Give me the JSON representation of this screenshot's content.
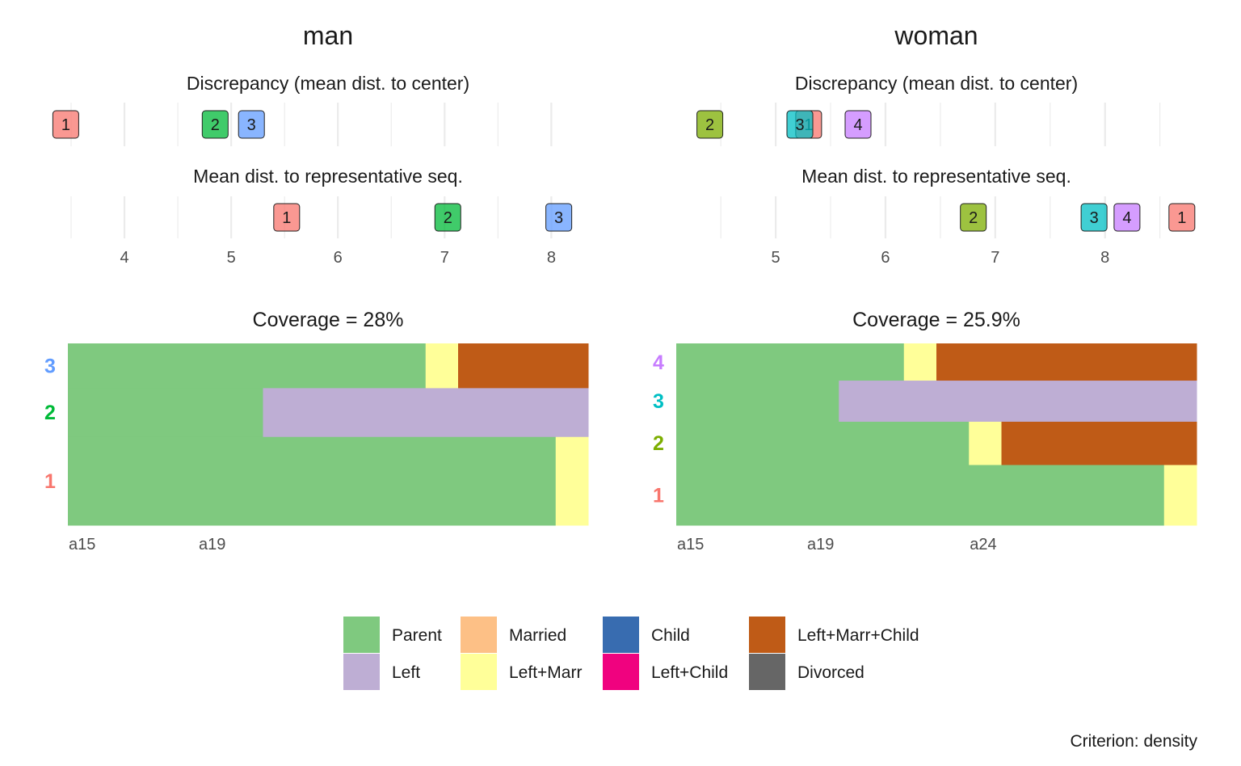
{
  "legend": {
    "items": [
      {
        "label": "Parent",
        "color": "#7FC97F"
      },
      {
        "label": "Left",
        "color": "#BEAED4"
      },
      {
        "label": "Married",
        "color": "#FDC086"
      },
      {
        "label": "Left+Marr",
        "color": "#FFFF99"
      },
      {
        "label": "Child",
        "color": "#386CB0"
      },
      {
        "label": "Left+Child",
        "color": "#F0027F"
      },
      {
        "label": "Left+Marr+Child",
        "color": "#BF5B17"
      },
      {
        "label": "Divorced",
        "color": "#666666"
      }
    ]
  },
  "caption": "Criterion: density",
  "chart_data": [
    {
      "type": "representative-sequence-plot",
      "title": "man",
      "discrepancy": {
        "label": "Discrepancy (mean dist. to center)",
        "values": [
          {
            "id": "1",
            "value": 3.45
          },
          {
            "id": "2",
            "value": 4.85
          },
          {
            "id": "3",
            "value": 5.19
          }
        ]
      },
      "mean_dist": {
        "label": "Mean dist. to representative seq.",
        "values": [
          {
            "id": "1",
            "value": 5.52
          },
          {
            "id": "2",
            "value": 7.03
          },
          {
            "id": "3",
            "value": 8.07
          }
        ]
      },
      "x_ticks": [
        "4",
        "5",
        "6",
        "7",
        "8"
      ],
      "xlim": [
        3.5,
        8.3
      ],
      "coverage_label": "Coverage = 28%",
      "seq_ticks": [
        "a15",
        "a19"
      ],
      "n_positions": 16,
      "sequences": [
        {
          "id": "1",
          "weight": 2.0,
          "label_color": "#F8766D",
          "runs": [
            {
              "state": "Parent",
              "length": 15
            },
            {
              "state": "Left+Marr",
              "length": 1
            }
          ]
        },
        {
          "id": "2",
          "weight": 1.1,
          "label_color": "#00BA38",
          "runs": [
            {
              "state": "Parent",
              "length": 6
            },
            {
              "state": "Left",
              "length": 10
            }
          ]
        },
        {
          "id": "3",
          "weight": 1.0,
          "label_color": "#619CFF",
          "runs": [
            {
              "state": "Parent",
              "length": 11
            },
            {
              "state": "Left+Marr",
              "length": 1
            },
            {
              "state": "Left+Marr+Child",
              "length": 4
            }
          ]
        }
      ]
    },
    {
      "type": "representative-sequence-plot",
      "title": "woman",
      "discrepancy": {
        "label": "Discrepancy (mean dist. to center)",
        "values": [
          {
            "id": "2",
            "value": 4.4
          },
          {
            "id": "1",
            "value": 5.3
          },
          {
            "id": "3",
            "value": 5.22
          },
          {
            "id": "4",
            "value": 5.75
          }
        ]
      },
      "mean_dist": {
        "label": "Mean dist. to representative seq.",
        "values": [
          {
            "id": "2",
            "value": 6.8
          },
          {
            "id": "3",
            "value": 7.9
          },
          {
            "id": "4",
            "value": 8.2
          },
          {
            "id": "1",
            "value": 8.7
          }
        ]
      },
      "x_ticks": [
        "5",
        "6",
        "7",
        "8"
      ],
      "xlim": [
        4.3,
        8.9
      ],
      "coverage_label": "Coverage = 25.9%",
      "seq_ticks": [
        "a15",
        "a19",
        "a24"
      ],
      "n_positions": 16,
      "sequences": [
        {
          "id": "1",
          "weight": 1.4,
          "label_color": "#F8766D",
          "runs": [
            {
              "state": "Parent",
              "length": 15
            },
            {
              "state": "Left+Marr",
              "length": 1
            }
          ]
        },
        {
          "id": "2",
          "weight": 1.0,
          "label_color": "#7CAE00",
          "runs": [
            {
              "state": "Parent",
              "length": 9
            },
            {
              "state": "Left+Marr",
              "length": 1
            },
            {
              "state": "Left+Marr+Child",
              "length": 6
            }
          ]
        },
        {
          "id": "3",
          "weight": 0.95,
          "label_color": "#00BFC4",
          "runs": [
            {
              "state": "Parent",
              "length": 5
            },
            {
              "state": "Left",
              "length": 11
            }
          ]
        },
        {
          "id": "4",
          "weight": 0.85,
          "label_color": "#C77CFF",
          "runs": [
            {
              "state": "Parent",
              "length": 7
            },
            {
              "state": "Left+Marr",
              "length": 1
            },
            {
              "state": "Left+Marr+Child",
              "length": 8
            }
          ]
        }
      ]
    }
  ]
}
